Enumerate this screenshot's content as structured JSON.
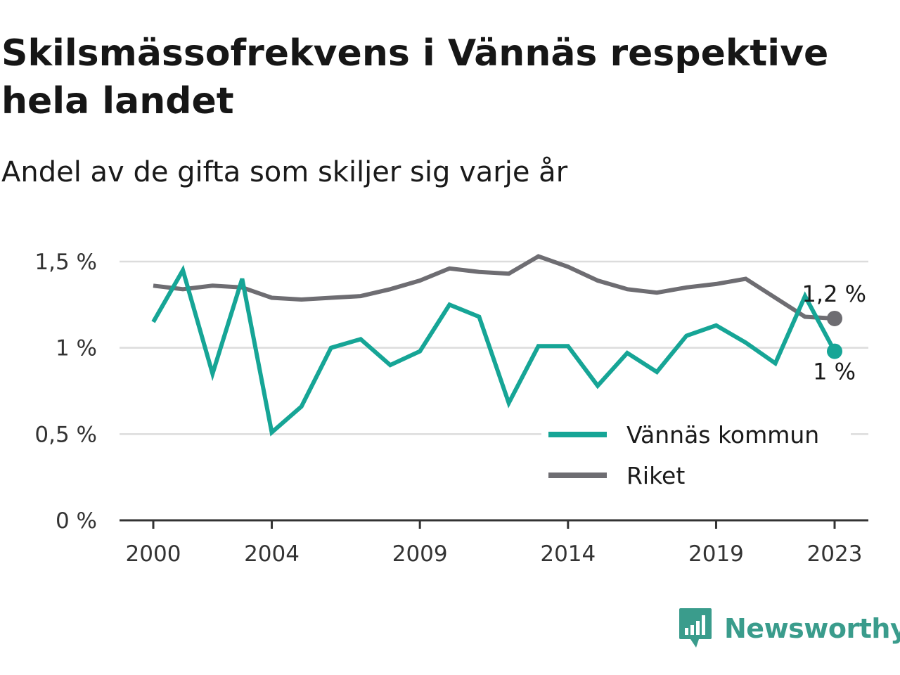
{
  "title": "Skilsmässofrekvens i Vännäs respektive hela landet",
  "subtitle": "Andel av de gifta som skiljer sig varje år",
  "brand": "Newsworthy",
  "colors": {
    "vannas": "#16a596",
    "riket": "#6e6d72",
    "grid": "#dcdcdc",
    "axis": "#333333",
    "brand": "#3a9c8c"
  },
  "chart_data": {
    "type": "line",
    "x": [
      2000,
      2001,
      2002,
      2003,
      2004,
      2005,
      2006,
      2007,
      2008,
      2009,
      2010,
      2011,
      2012,
      2013,
      2014,
      2015,
      2016,
      2017,
      2018,
      2019,
      2020,
      2021,
      2022,
      2023
    ],
    "x_ticks": [
      2000,
      2004,
      2009,
      2014,
      2019,
      2023
    ],
    "y_ticks": [
      {
        "value": 0,
        "label": "0 %"
      },
      {
        "value": 0.5,
        "label": "0,5 %"
      },
      {
        "value": 1,
        "label": "1 %"
      },
      {
        "value": 1.5,
        "label": "1,5 %"
      }
    ],
    "ylim": [
      0,
      1.5
    ],
    "grid": true,
    "legend_position": "bottom-right",
    "series": [
      {
        "name": "Vännäs kommun",
        "color": "#16a596",
        "values": [
          1.15,
          1.45,
          0.85,
          1.4,
          0.51,
          0.66,
          1.0,
          1.05,
          0.9,
          0.98,
          1.25,
          1.18,
          0.68,
          1.01,
          1.01,
          0.78,
          0.97,
          0.86,
          1.07,
          1.13,
          1.03,
          0.91,
          1.3,
          0.98
        ],
        "end_label": "1 %"
      },
      {
        "name": "Riket",
        "color": "#6e6d72",
        "values": [
          1.36,
          1.34,
          1.36,
          1.35,
          1.29,
          1.28,
          1.29,
          1.3,
          1.34,
          1.39,
          1.46,
          1.44,
          1.43,
          1.53,
          1.47,
          1.39,
          1.34,
          1.32,
          1.35,
          1.37,
          1.4,
          1.29,
          1.18,
          1.17
        ],
        "end_label": "1,2 %"
      }
    ]
  }
}
